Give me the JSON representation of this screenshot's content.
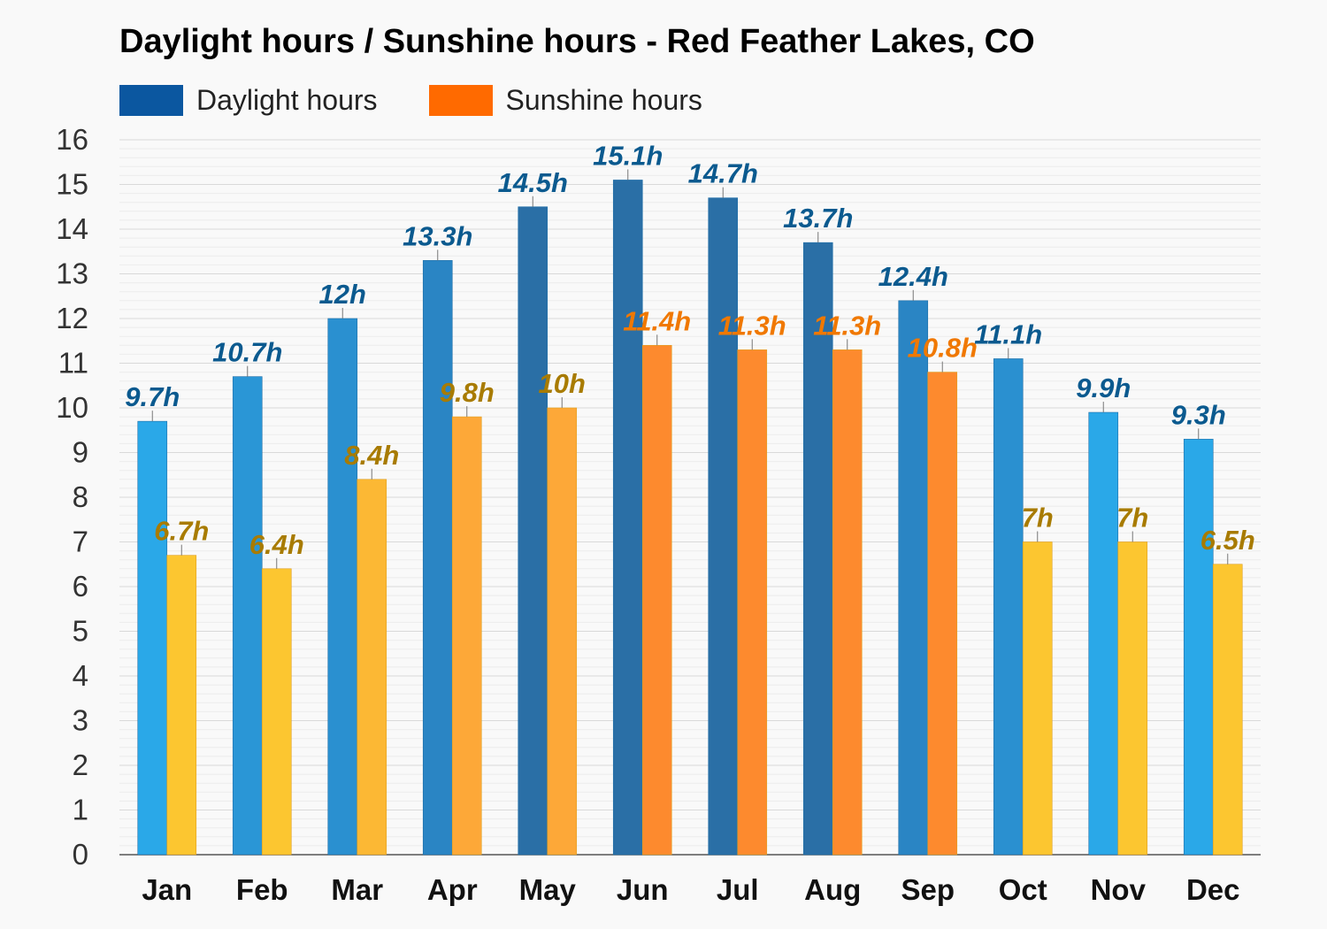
{
  "chart_data": {
    "type": "bar",
    "title": "Daylight hours / Sunshine hours - Red Feather Lakes, CO",
    "categories": [
      "Jan",
      "Feb",
      "Mar",
      "Apr",
      "May",
      "Jun",
      "Jul",
      "Aug",
      "Sep",
      "Oct",
      "Nov",
      "Dec"
    ],
    "series": [
      {
        "name": "Daylight hours",
        "values": [
          9.7,
          10.7,
          12,
          13.3,
          14.5,
          15.1,
          14.7,
          13.7,
          12.4,
          11.1,
          9.9,
          9.3
        ],
        "labels": [
          "9.7h",
          "10.7h",
          "12h",
          "13.3h",
          "14.5h",
          "15.1h",
          "14.7h",
          "13.7h",
          "12.4h",
          "11.1h",
          "9.9h",
          "9.3h"
        ],
        "legend_color": "#0b57a0",
        "colors": [
          "#2aa8e8",
          "#2a96d6",
          "#2a90d0",
          "#2a85c4",
          "#2a6fa6",
          "#2a6fa6",
          "#2a6fa6",
          "#2a6fa6",
          "#2a85c4",
          "#2a90d0",
          "#2aa8e8",
          "#2aa8e8"
        ],
        "label_color": "#0b5a8f"
      },
      {
        "name": "Sunshine hours",
        "values": [
          6.7,
          6.4,
          8.4,
          9.8,
          10,
          11.4,
          11.3,
          11.3,
          10.8,
          7,
          7,
          6.5
        ],
        "labels": [
          "6.7h",
          "6.4h",
          "8.4h",
          "9.8h",
          "10h",
          "11.4h",
          "11.3h",
          "11.3h",
          "10.8h",
          "7h",
          "7h",
          "6.5h"
        ],
        "legend_color": "#ff6a00",
        "colors": [
          "#fcc630",
          "#fcc630",
          "#fcb834",
          "#fda838",
          "#fda838",
          "#fd8a2e",
          "#fd8a2e",
          "#fd8a2e",
          "#fd8a2e",
          "#fcc630",
          "#fcc630",
          "#fcc630"
        ],
        "label_colors": [
          "#a87b00",
          "#a87b00",
          "#a87b00",
          "#a87b00",
          "#a87b00",
          "#f07800",
          "#f07800",
          "#f07800",
          "#f07800",
          "#a87b00",
          "#a87b00",
          "#a87b00"
        ]
      }
    ],
    "ylim": [
      0,
      16
    ],
    "yticks": [
      0,
      1,
      2,
      3,
      4,
      5,
      6,
      7,
      8,
      9,
      10,
      11,
      12,
      13,
      14,
      15,
      16
    ],
    "grid": true,
    "legend_position": "top-left"
  }
}
